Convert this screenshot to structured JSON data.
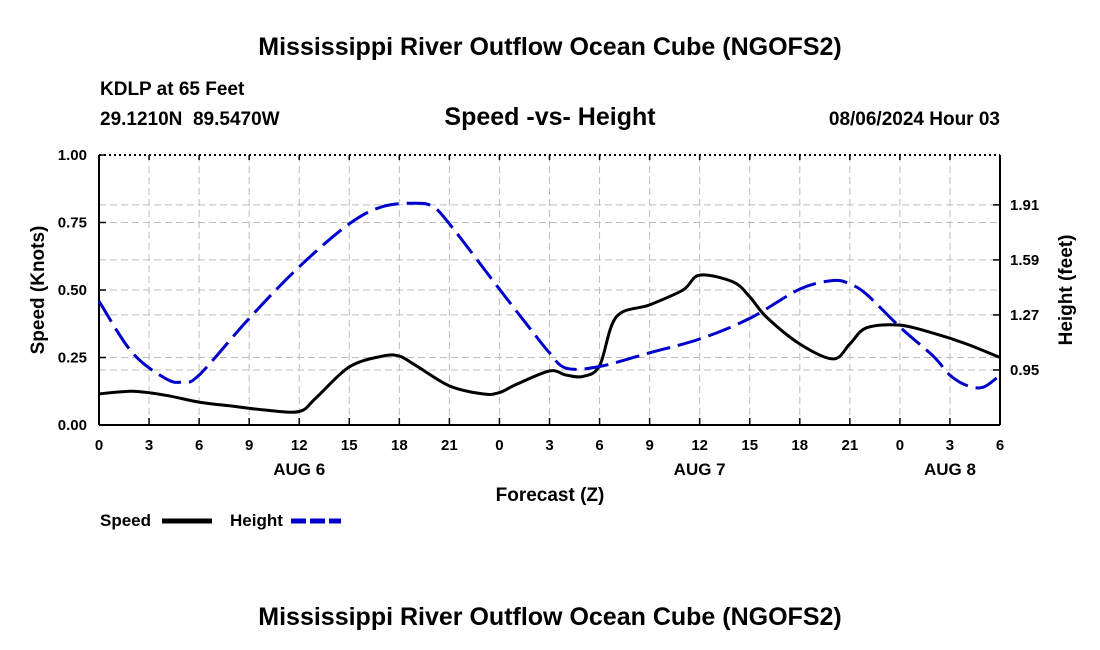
{
  "chart_data": {
    "type": "line",
    "title": "Mississippi River Outflow Ocean Cube (NGOFS2)",
    "subtitle": "Speed -vs- Height",
    "station": "KDLP at 65 Feet",
    "location": "29.1210N  89.5470W",
    "datetime": "08/06/2024 Hour 03",
    "xlabel": "Forecast (Z)",
    "ylabel_left": "Speed (Knots)",
    "ylabel_right": "Height (feet)",
    "x_range": [
      0,
      54
    ],
    "x_ticks": [
      0,
      3,
      6,
      9,
      12,
      15,
      18,
      21,
      24,
      27,
      30,
      33,
      36,
      39,
      42,
      45,
      48,
      51,
      54
    ],
    "x_tick_labels": [
      "0",
      "3",
      "6",
      "9",
      "12",
      "15",
      "18",
      "21",
      "0",
      "3",
      "6",
      "9",
      "12",
      "15",
      "18",
      "21",
      "0",
      "3",
      "6"
    ],
    "date_labels": [
      {
        "x": 12,
        "label": "AUG 6"
      },
      {
        "x": 36,
        "label": "AUG 7"
      },
      {
        "x": 51,
        "label": "AUG 8"
      }
    ],
    "ylim_left": [
      0,
      1
    ],
    "y_ticks_left": [
      0,
      0.25,
      0.5,
      0.75,
      1.0
    ],
    "y_tick_labels_left": [
      "0.00",
      "0.25",
      "0.50",
      "0.75",
      "1.00"
    ],
    "ylim_right": [
      0.63,
      2.2
    ],
    "y_ticks_right": [
      0.95,
      1.27,
      1.59,
      1.91
    ],
    "y_tick_labels_right": [
      "0.95",
      "1.27",
      "1.59",
      "1.91"
    ],
    "grid": true,
    "series": [
      {
        "name": "Speed",
        "axis": "left",
        "color": "#000000",
        "style": "solid",
        "x": [
          0,
          2,
          4,
          6,
          8,
          10,
          12,
          13,
          15,
          17,
          18,
          19,
          21,
          23,
          24,
          25,
          27,
          28,
          29,
          30,
          31,
          33,
          35,
          36,
          38,
          39,
          40,
          42,
          44,
          45,
          46,
          48,
          50,
          52,
          54
        ],
        "y": [
          0.115,
          0.125,
          0.11,
          0.085,
          0.07,
          0.055,
          0.05,
          0.1,
          0.215,
          0.255,
          0.255,
          0.22,
          0.145,
          0.115,
          0.12,
          0.15,
          0.2,
          0.185,
          0.18,
          0.22,
          0.4,
          0.445,
          0.5,
          0.555,
          0.53,
          0.475,
          0.4,
          0.3,
          0.245,
          0.3,
          0.36,
          0.37,
          0.34,
          0.3,
          0.25
        ]
      },
      {
        "name": "Height",
        "axis": "right",
        "color": "#0000cc",
        "style": "dashed",
        "x": [
          0,
          2,
          4,
          5,
          6,
          9,
          12,
          15,
          17,
          19,
          20,
          21,
          24,
          26,
          27,
          28,
          30,
          33,
          36,
          39,
          42,
          44,
          45,
          46,
          48,
          50,
          51,
          52,
          53,
          54
        ],
        "y": [
          1.35,
          1.05,
          0.9,
          0.88,
          0.92,
          1.25,
          1.55,
          1.8,
          1.9,
          1.92,
          1.9,
          1.8,
          1.42,
          1.17,
          1.05,
          0.96,
          0.97,
          1.05,
          1.13,
          1.25,
          1.42,
          1.47,
          1.45,
          1.39,
          1.2,
          1.03,
          0.92,
          0.86,
          0.85,
          0.92
        ]
      }
    ],
    "legend": [
      {
        "label": "Speed",
        "color": "#000000",
        "style": "solid"
      },
      {
        "label": "Height",
        "color": "#0000cc",
        "style": "dashed"
      }
    ],
    "legend_position": "bottom-left",
    "footer_title": "Mississippi River Outflow Ocean Cube (NGOFS2)"
  }
}
